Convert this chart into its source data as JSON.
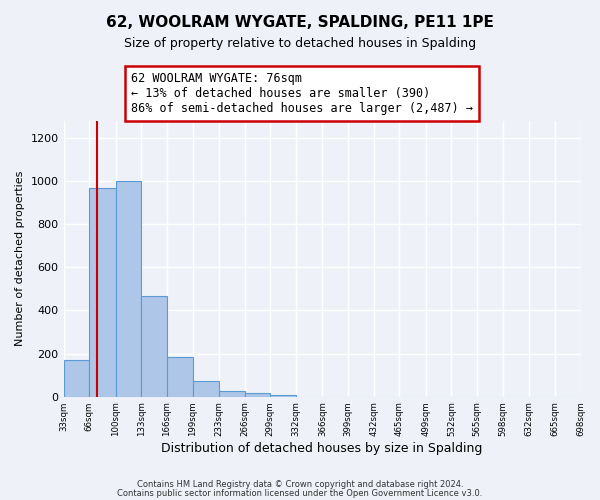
{
  "title": "62, WOOLRAM WYGATE, SPALDING, PE11 1PE",
  "subtitle": "Size of property relative to detached houses in Spalding",
  "xlabel": "Distribution of detached houses by size in Spalding",
  "ylabel": "Number of detached properties",
  "bin_edges": [
    33,
    66,
    100,
    133,
    166,
    199,
    233,
    266,
    299,
    332,
    366,
    399,
    432,
    465,
    499,
    532,
    565,
    598,
    632,
    665,
    698
  ],
  "bin_counts": [
    170,
    970,
    1000,
    465,
    185,
    75,
    25,
    15,
    10,
    0,
    0,
    0,
    0,
    0,
    0,
    0,
    0,
    0,
    0,
    0
  ],
  "bar_color": "#aec6e8",
  "bar_edge_color": "#5b9bd5",
  "vline_x": 76,
  "vline_color": "#cc0000",
  "annotation_title": "62 WOOLRAM WYGATE: 76sqm",
  "annotation_line1": "← 13% of detached houses are smaller (390)",
  "annotation_line2": "86% of semi-detached houses are larger (2,487) →",
  "annotation_box_color": "#ffffff",
  "annotation_box_edge_color": "#cc0000",
  "ylim": [
    0,
    1280
  ],
  "yticks": [
    0,
    200,
    400,
    600,
    800,
    1000,
    1200
  ],
  "tick_labels": [
    "33sqm",
    "66sqm",
    "100sqm",
    "133sqm",
    "166sqm",
    "199sqm",
    "233sqm",
    "266sqm",
    "299sqm",
    "332sqm",
    "366sqm",
    "399sqm",
    "432sqm",
    "465sqm",
    "499sqm",
    "532sqm",
    "565sqm",
    "598sqm",
    "632sqm",
    "665sqm",
    "698sqm"
  ],
  "footer1": "Contains HM Land Registry data © Crown copyright and database right 2024.",
  "footer2": "Contains public sector information licensed under the Open Government Licence v3.0.",
  "bg_color": "#eef2f8",
  "grid_color": "#ffffff"
}
